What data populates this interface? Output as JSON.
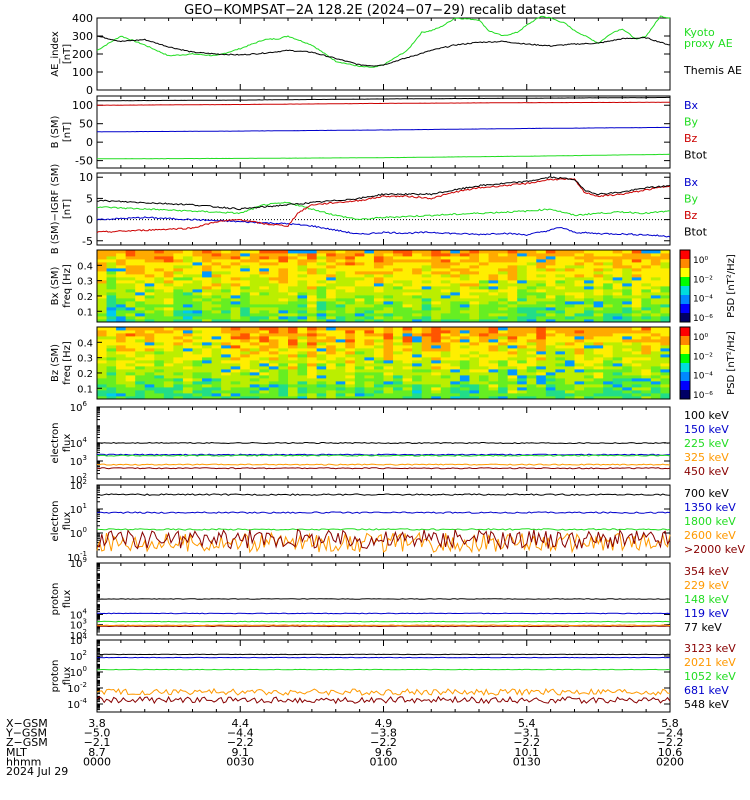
{
  "title": "GEO−KOMPSAT−2A 128.2E (2024−07−29) recalib dataset",
  "colors": {
    "black": "#000000",
    "green": "#22dd22",
    "red": "#cc0000",
    "blue": "#0000cc",
    "orange": "#ff9900",
    "maroon": "#880000"
  },
  "chart_data": [
    {
      "type": "line",
      "id": "ae",
      "ylabel": [
        "AE_index",
        "[nT]"
      ],
      "ylim": [
        0,
        400
      ],
      "yticks": [
        0,
        100,
        200,
        300,
        400
      ],
      "x_range": [
        0,
        120
      ],
      "x_unit": "minutes after 0000 UT",
      "series": [
        {
          "name": "Kyoto proxy AE",
          "legend": [
            "Kyoto",
            "proxy AE"
          ],
          "color": "green",
          "x": [
            0,
            5,
            10,
            15,
            20,
            25,
            30,
            35,
            38,
            40,
            45,
            50,
            55,
            58,
            60,
            65,
            68,
            70,
            72,
            75,
            80,
            82,
            85,
            88,
            90,
            93,
            95,
            98,
            100,
            103,
            105,
            108,
            110,
            113,
            115,
            118,
            120
          ],
          "y": [
            220,
            300,
            250,
            190,
            200,
            190,
            230,
            280,
            285,
            300,
            250,
            160,
            130,
            125,
            140,
            220,
            320,
            330,
            350,
            400,
            390,
            330,
            300,
            320,
            360,
            410,
            400,
            370,
            330,
            290,
            260,
            320,
            340,
            280,
            300,
            410,
            400
          ]
        },
        {
          "name": "Themis AE",
          "legend": [
            "Themis AE"
          ],
          "color": "black",
          "x": [
            0,
            5,
            10,
            15,
            20,
            25,
            30,
            35,
            40,
            45,
            50,
            55,
            58,
            60,
            65,
            70,
            75,
            80,
            85,
            90,
            95,
            100,
            105,
            110,
            115,
            118,
            120
          ],
          "y": [
            300,
            270,
            280,
            240,
            210,
            200,
            195,
            205,
            220,
            210,
            175,
            140,
            135,
            140,
            180,
            220,
            250,
            265,
            270,
            255,
            245,
            255,
            260,
            285,
            290,
            265,
            250
          ]
        }
      ]
    },
    {
      "type": "line",
      "id": "bsm",
      "ylabel": [
        "B (SM)",
        "[nT]"
      ],
      "ylim": [
        -70,
        125
      ],
      "yticks": [
        -50,
        0,
        50,
        100
      ],
      "x_range": [
        0,
        120
      ],
      "series": [
        {
          "name": "Bx",
          "color": "blue",
          "x": [
            0,
            30,
            60,
            90,
            120
          ],
          "y": [
            28,
            30,
            33,
            37,
            40
          ]
        },
        {
          "name": "By",
          "color": "green",
          "x": [
            0,
            30,
            60,
            90,
            120
          ],
          "y": [
            -45,
            -44,
            -42,
            -38,
            -33
          ]
        },
        {
          "name": "Bz",
          "color": "red",
          "x": [
            0,
            30,
            60,
            90,
            120
          ],
          "y": [
            100,
            102,
            105,
            107,
            108
          ]
        },
        {
          "name": "Btot",
          "color": "black",
          "x": [
            0,
            30,
            60,
            90,
            120
          ],
          "y": [
            112,
            114,
            117,
            119,
            121
          ]
        }
      ]
    },
    {
      "type": "line",
      "id": "bsub",
      "ylabel": [
        "B (SM)−IGRF (SM)",
        "[nT]"
      ],
      "ylim": [
        -6,
        11
      ],
      "yticks": [
        -5,
        0,
        5,
        10
      ],
      "x_range": [
        0,
        120
      ],
      "series": [
        {
          "name": "Bx",
          "color": "blue",
          "x": [
            0,
            10,
            20,
            30,
            40,
            45,
            50,
            55,
            60,
            65,
            70,
            75,
            80,
            85,
            90,
            95,
            97,
            100,
            105,
            110,
            115,
            120
          ],
          "y": [
            0,
            0.5,
            0,
            -0.5,
            -1,
            -1.5,
            -2.5,
            -3.5,
            -3,
            -3.2,
            -3,
            -3.3,
            -3.5,
            -3.2,
            -3.6,
            -2.5,
            -1.8,
            -3,
            -3.3,
            -3.4,
            -3.6,
            -4
          ]
        },
        {
          "name": "By",
          "color": "green",
          "x": [
            0,
            10,
            20,
            30,
            35,
            40,
            45,
            50,
            55,
            60,
            70,
            80,
            90,
            95,
            100,
            105,
            110,
            115,
            120
          ],
          "y": [
            3,
            2.5,
            2,
            1.5,
            3.5,
            4,
            2.5,
            1,
            0,
            0.5,
            1,
            1.5,
            2,
            2.5,
            1,
            1.5,
            1.8,
            1.5,
            2
          ]
        },
        {
          "name": "Bz",
          "color": "red",
          "x": [
            0,
            10,
            20,
            25,
            30,
            35,
            40,
            42,
            45,
            50,
            55,
            60,
            65,
            70,
            75,
            80,
            85,
            90,
            95,
            100,
            102,
            105,
            110,
            115,
            120
          ],
          "y": [
            -3,
            -2.5,
            -2,
            -0.5,
            0,
            -1,
            -1.5,
            1.5,
            3.5,
            4,
            4.5,
            5.5,
            5.5,
            5,
            6.5,
            7.5,
            8,
            8.5,
            9.5,
            9.5,
            6.5,
            5.5,
            6,
            7,
            8
          ]
        },
        {
          "name": "Btot",
          "color": "black",
          "x": [
            0,
            10,
            20,
            30,
            35,
            40,
            45,
            50,
            55,
            60,
            65,
            70,
            75,
            80,
            85,
            90,
            95,
            100,
            102,
            105,
            110,
            115,
            120
          ],
          "y": [
            4.5,
            4,
            3.5,
            2.5,
            3,
            3.5,
            4,
            4.5,
            5,
            6,
            6,
            6,
            7,
            8,
            8.5,
            9,
            10,
            9.5,
            7,
            6,
            6.5,
            7.5,
            8
          ]
        }
      ]
    },
    {
      "type": "heatmap",
      "id": "bxpsd",
      "ylabel": [
        "Bx (SM)",
        "freq [Hz]"
      ],
      "ylim": [
        0.03,
        0.5
      ],
      "yticks": [
        0.1,
        0.2,
        0.3,
        0.4
      ],
      "colorbar": {
        "label": "PSD [nT²/Hz]",
        "ticks": [
          "10⁰",
          "10⁻²",
          "10⁻⁴",
          "10⁻⁶"
        ]
      }
    },
    {
      "type": "heatmap",
      "id": "bzpsd",
      "ylabel": [
        "Bz (SM)",
        "freq [Hz]"
      ],
      "ylim": [
        0.03,
        0.5
      ],
      "yticks": [
        0.1,
        0.2,
        0.3,
        0.4
      ],
      "colorbar": {
        "label": "PSD [nT²/Hz]",
        "ticks": [
          "10⁰",
          "10⁻²",
          "10⁻⁴",
          "10⁻⁶"
        ]
      }
    },
    {
      "type": "line",
      "id": "elec1",
      "log": true,
      "ylabel": [
        "electron",
        "flux"
      ],
      "ylim_exp": [
        2,
        6
      ],
      "yticks_exp": [
        2,
        3,
        4,
        6
      ],
      "series": [
        {
          "name": "100 keV",
          "color": "black",
          "logy": 4.0
        },
        {
          "name": "150 keV",
          "color": "blue",
          "logy": 3.35
        },
        {
          "name": "225 keV",
          "color": "green",
          "logy": 3.3
        },
        {
          "name": "325 keV",
          "color": "orange",
          "logy": 2.8
        },
        {
          "name": "450 keV",
          "color": "maroon",
          "logy": 2.6
        }
      ]
    },
    {
      "type": "line",
      "id": "elec2",
      "log": true,
      "ylabel": [
        "electron",
        "flux"
      ],
      "ylim_exp": [
        -1,
        2
      ],
      "yticks_exp": [
        -1,
        0,
        1,
        2
      ],
      "series": [
        {
          "name": "700 keV",
          "color": "black",
          "logy": 1.6
        },
        {
          "name": "1350 keV",
          "color": "blue",
          "logy": 0.85
        },
        {
          "name": "1800 keV",
          "color": "green",
          "logy": 0.15
        },
        {
          "name": "2600 keV",
          "color": "orange",
          "logy": -0.4
        },
        {
          "name": ">2000 keV",
          "color": "maroon",
          "logy": -0.25
        }
      ]
    },
    {
      "type": "line",
      "id": "prot1",
      "log": true,
      "ylabel": [
        "proton",
        "flux"
      ],
      "ylim_exp": [
        2,
        9
      ],
      "yticks_exp": [
        2,
        3,
        4,
        9
      ],
      "series": [
        {
          "name": "354 keV",
          "color": "maroon",
          "logy": 2.85
        },
        {
          "name": "229 keV",
          "color": "orange",
          "logy": 2.95
        },
        {
          "name": "148 keV",
          "color": "green",
          "logy": 3.3
        },
        {
          "name": "119 keV",
          "color": "blue",
          "logy": 4.1
        },
        {
          "name": "77 keV",
          "color": "black",
          "logy": 5.5
        }
      ]
    },
    {
      "type": "line",
      "id": "prot2",
      "log": true,
      "ylabel": [
        "proton",
        "flux"
      ],
      "ylim_exp": [
        -5,
        4
      ],
      "yticks_exp": [
        -4,
        -2,
        0,
        2,
        4
      ],
      "series": [
        {
          "name": "3123 keV",
          "color": "maroon",
          "logy": -3.5
        },
        {
          "name": "2021 keV",
          "color": "orange",
          "logy": -2.5
        },
        {
          "name": "1052 keV",
          "color": "green",
          "logy": 0.3
        },
        {
          "name": "681 keV",
          "color": "blue",
          "logy": 1.8
        },
        {
          "name": "548 keV",
          "color": "black",
          "logy": 2.2
        }
      ]
    }
  ],
  "xaxis": {
    "row_labels": [
      "X−GSM",
      "Y−GSM",
      "Z−GSM",
      "MLT",
      "hhmm",
      "2024 Jul 29"
    ],
    "ticks": [
      {
        "minute": 0,
        "values": [
          "3.8",
          "−5.0",
          "−2.1",
          "8.7",
          "0000"
        ]
      },
      {
        "minute": 30,
        "values": [
          "4.4",
          "−4.4",
          "−2.2",
          "9.1",
          "0030"
        ]
      },
      {
        "minute": 60,
        "values": [
          "4.9",
          "−3.8",
          "−2.2",
          "9.6",
          "0100"
        ]
      },
      {
        "minute": 90,
        "values": [
          "5.4",
          "−3.1",
          "−2.2",
          "10.1",
          "0130"
        ]
      },
      {
        "minute": 120,
        "values": [
          "5.8",
          "−2.4",
          "−2.2",
          "10.6",
          "0200"
        ]
      }
    ]
  }
}
